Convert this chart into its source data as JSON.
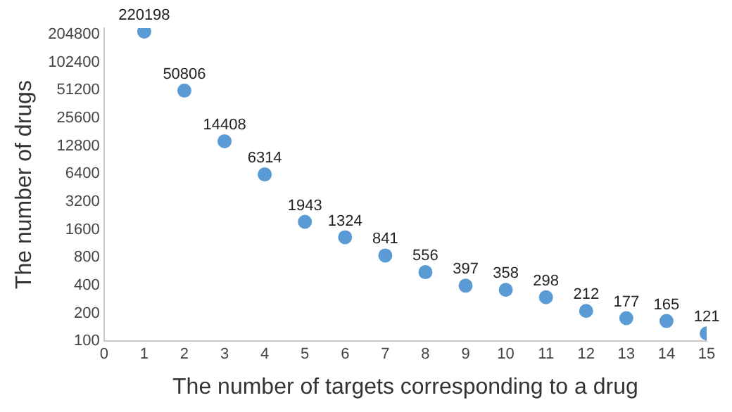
{
  "chart_data": {
    "type": "scatter",
    "xlabel": "The number of targets corresponding to a drug",
    "ylabel": "The number of drugs",
    "x": [
      1,
      2,
      3,
      4,
      5,
      6,
      7,
      8,
      9,
      10,
      11,
      12,
      13,
      14,
      15
    ],
    "series": [
      {
        "color": "#5b9bd5",
        "values": [
          220198,
          50806,
          14408,
          6314,
          1943,
          1324,
          841,
          556,
          397,
          358,
          298,
          212,
          177,
          165,
          121
        ]
      }
    ],
    "xlim": [
      0,
      15
    ],
    "xticks": [
      0,
      1,
      2,
      3,
      4,
      5,
      6,
      7,
      8,
      9,
      10,
      11,
      12,
      13,
      14,
      15
    ],
    "ylim": [
      100,
      240000
    ],
    "yticks": [
      100,
      200,
      400,
      800,
      1600,
      3200,
      6400,
      12800,
      25600,
      51200,
      102400,
      204800
    ],
    "log": "y",
    "grid": false,
    "legend": false,
    "marker": "circle",
    "data_labels": true
  }
}
